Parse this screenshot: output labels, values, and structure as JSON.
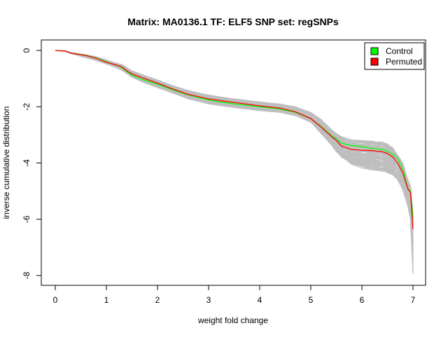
{
  "chart_data": {
    "type": "line",
    "title": "Matrix: MA0136.1 TF: ELF5 SNP set: regSNPs",
    "xlabel": "weight fold change",
    "ylabel": "inverse cumulative distribution",
    "xlim": [
      0,
      7
    ],
    "ylim": [
      -8,
      0
    ],
    "x_ticks": [
      0,
      1,
      2,
      3,
      4,
      5,
      6,
      7
    ],
    "y_ticks": [
      0,
      -2,
      -4,
      -6,
      -8
    ],
    "x_tick_labels": [
      "0",
      "1",
      "2",
      "3",
      "4",
      "5",
      "6",
      "7"
    ],
    "y_tick_labels": [
      "0",
      "-2",
      "-4",
      "-6",
      "-8"
    ],
    "grid": false,
    "legend": {
      "position": "top-right",
      "entries": [
        {
          "label": "Control",
          "color": "#00ff00"
        },
        {
          "label": "Permuted",
          "color": "#ff0000"
        }
      ]
    },
    "background_colors": {
      "permutation_lines": "#bebebe"
    },
    "series": [
      {
        "name": "Control",
        "color": "#00ff00",
        "x": [
          0.0,
          0.2,
          0.3,
          0.4,
          0.6,
          0.8,
          1.0,
          1.2,
          1.3,
          1.4,
          1.5,
          1.7,
          2.0,
          2.3,
          2.6,
          3.0,
          3.3,
          3.6,
          4.0,
          4.4,
          4.7,
          5.0,
          5.2,
          5.4,
          5.5,
          5.6,
          5.8,
          6.0,
          6.2,
          6.4,
          6.5,
          6.6,
          6.7,
          6.8,
          6.9,
          6.95,
          7.0
        ],
        "y": [
          0.0,
          -0.02,
          -0.1,
          -0.12,
          -0.17,
          -0.27,
          -0.4,
          -0.53,
          -0.6,
          -0.75,
          -0.88,
          -1.03,
          -1.2,
          -1.4,
          -1.58,
          -1.76,
          -1.85,
          -1.92,
          -2.0,
          -2.08,
          -2.2,
          -2.42,
          -2.7,
          -3.02,
          -3.15,
          -3.3,
          -3.38,
          -3.42,
          -3.48,
          -3.52,
          -3.58,
          -3.68,
          -3.85,
          -4.2,
          -4.9,
          -5.0,
          -5.95
        ]
      },
      {
        "name": "Permuted",
        "color": "#ff0000",
        "x": [
          0.0,
          0.2,
          0.3,
          0.4,
          0.6,
          0.8,
          1.0,
          1.2,
          1.3,
          1.4,
          1.5,
          1.7,
          2.0,
          2.3,
          2.6,
          3.0,
          3.3,
          3.6,
          4.0,
          4.4,
          4.7,
          5.0,
          5.2,
          5.4,
          5.5,
          5.6,
          5.8,
          6.0,
          6.2,
          6.4,
          6.5,
          6.6,
          6.7,
          6.8,
          6.9,
          6.95,
          7.0
        ],
        "y": [
          0.0,
          -0.02,
          -0.1,
          -0.12,
          -0.18,
          -0.28,
          -0.42,
          -0.52,
          -0.58,
          -0.72,
          -0.83,
          -0.97,
          -1.16,
          -1.37,
          -1.56,
          -1.72,
          -1.8,
          -1.87,
          -1.97,
          -2.05,
          -2.18,
          -2.42,
          -2.72,
          -3.05,
          -3.2,
          -3.4,
          -3.52,
          -3.55,
          -3.56,
          -3.6,
          -3.66,
          -3.78,
          -4.0,
          -4.35,
          -4.92,
          -5.05,
          -6.35
        ]
      }
    ],
    "permutation_band": {
      "x": [
        0.0,
        0.2,
        0.4,
        0.6,
        0.8,
        1.0,
        1.2,
        1.3,
        1.5,
        1.7,
        2.0,
        2.3,
        2.6,
        3.0,
        3.3,
        3.6,
        4.0,
        4.4,
        4.7,
        5.0,
        5.2,
        5.4,
        5.5,
        5.6,
        5.8,
        6.0,
        6.2,
        6.4,
        6.5,
        6.6,
        6.7,
        6.8,
        6.9,
        6.95,
        7.0
      ],
      "upper": [
        0.0,
        -0.02,
        -0.1,
        -0.15,
        -0.22,
        -0.34,
        -0.45,
        -0.5,
        -0.72,
        -0.86,
        -1.05,
        -1.25,
        -1.42,
        -1.58,
        -1.67,
        -1.74,
        -1.83,
        -1.9,
        -2.0,
        -2.2,
        -2.45,
        -2.8,
        -2.95,
        -3.05,
        -3.18,
        -3.2,
        -3.22,
        -3.25,
        -3.32,
        -3.45,
        -3.7,
        -4.0,
        -4.6,
        -4.8,
        -5.8
      ],
      "lower": [
        0.0,
        -0.04,
        -0.16,
        -0.26,
        -0.36,
        -0.48,
        -0.62,
        -0.7,
        -0.95,
        -1.12,
        -1.32,
        -1.52,
        -1.72,
        -1.9,
        -1.98,
        -2.05,
        -2.14,
        -2.2,
        -2.32,
        -2.55,
        -2.95,
        -3.35,
        -3.6,
        -3.8,
        -4.05,
        -4.18,
        -4.25,
        -4.3,
        -4.35,
        -4.45,
        -4.6,
        -4.95,
        -5.55,
        -6.0,
        -7.95
      ]
    },
    "permutation_line_count": 100
  }
}
